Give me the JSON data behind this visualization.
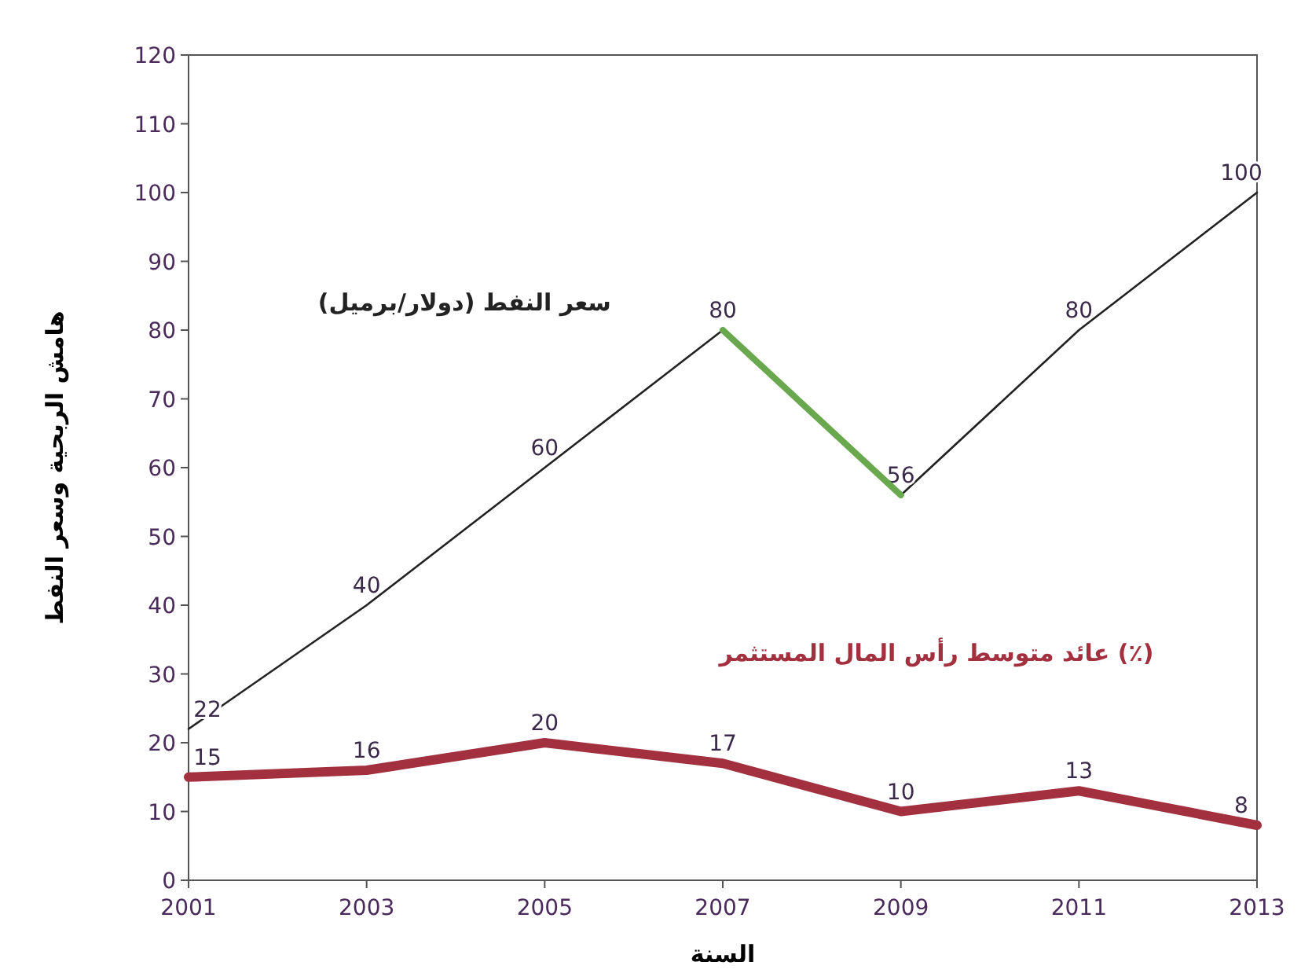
{
  "chart_data": {
    "type": "line",
    "xlabel": "السنة",
    "ylabel": "هامش الربحية وسعر النفط",
    "x": [
      2001,
      2003,
      2005,
      2007,
      2009,
      2011,
      2013
    ],
    "series": [
      {
        "name": "سعر النفط (دولار/برميل)",
        "color": "#222222",
        "values": [
          22,
          40,
          60,
          80,
          56,
          80,
          100
        ]
      },
      {
        "type": "line",
        "color": "#6aa84f",
        "x": [
          2007,
          2009
        ],
        "values": [
          80,
          56
        ],
        "value_labels": [
          null,
          null
        ]
      },
      {
        "name": "عائد متوسط رأس المال المستثمر (٪)",
        "color": "#a3303f",
        "values": [
          15,
          16,
          20,
          17,
          10,
          13,
          8
        ]
      }
    ],
    "xlim": [
      2001,
      2013
    ],
    "xticks": [
      2001,
      2003,
      2005,
      2007,
      2009,
      2011,
      2013
    ],
    "ylim": [
      0,
      120
    ],
    "yticks": [
      0,
      10,
      20,
      30,
      40,
      50,
      60,
      70,
      80,
      90,
      100,
      110,
      120
    ],
    "data_labels": true,
    "grid": false
  }
}
